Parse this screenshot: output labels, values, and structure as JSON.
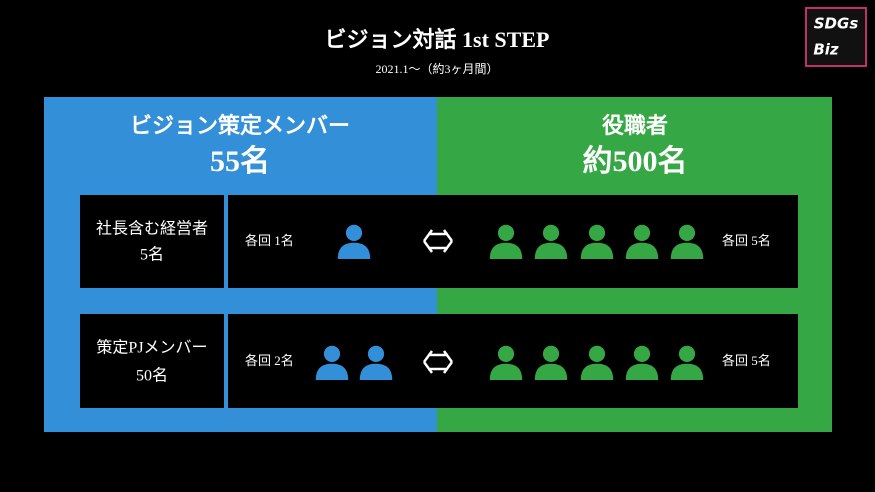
{
  "header": {
    "title": "ビジョン対話 1st STEP",
    "subtitle": "2021.1～（約3ヶ月間）"
  },
  "logo": {
    "line1": "SDGs",
    "line2": "Biz"
  },
  "left_panel": {
    "title": "ビジョン策定メンバー",
    "count": "55名"
  },
  "right_panel": {
    "title": "役職者",
    "count": "約500名"
  },
  "rows": [
    {
      "label": "社長含む経営者",
      "label_count": "5名",
      "left_note": "各回 1名",
      "right_note": "各回 5名"
    },
    {
      "label": "策定PJメンバー",
      "label_count": "50名",
      "left_note": "各回 2名",
      "right_note": "各回 5名"
    }
  ]
}
